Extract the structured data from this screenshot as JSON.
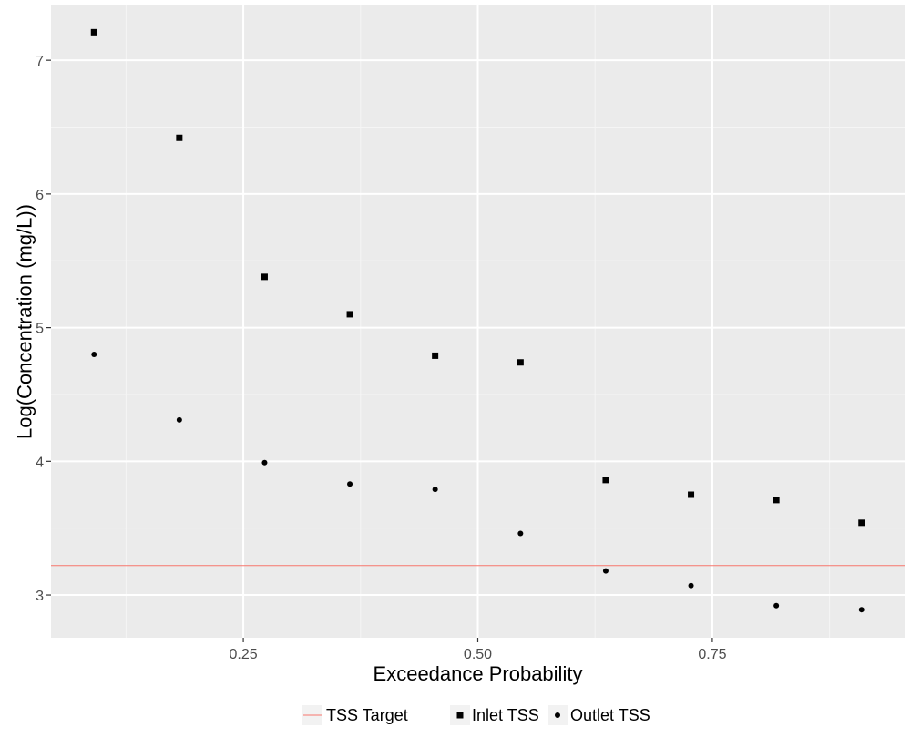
{
  "chart_data": {
    "type": "scatter",
    "title": "",
    "xlabel": "Exceedance Probability",
    "ylabel": "Log(Concentration (mg/L))",
    "xlim": [
      0.045,
      0.955
    ],
    "ylim": [
      2.68,
      7.41
    ],
    "x_ticks": [
      0.25,
      0.5,
      0.75
    ],
    "x_tick_labels": [
      "0.25",
      "0.50",
      "0.75"
    ],
    "x_minor_ticks": [
      0.125,
      0.375,
      0.625,
      0.875
    ],
    "y_ticks": [
      3,
      4,
      5,
      6,
      7
    ],
    "y_tick_labels": [
      "3",
      "4",
      "5",
      "6",
      "7"
    ],
    "y_minor_ticks": [
      3.5,
      4.5,
      5.5,
      6.5
    ],
    "grid": true,
    "legend_position": "bottom",
    "series": [
      {
        "name": "Inlet TSS",
        "marker": "square",
        "color": "#000000",
        "x": [
          0.0909,
          0.1818,
          0.2727,
          0.3636,
          0.4545,
          0.5455,
          0.6364,
          0.7273,
          0.8182,
          0.9091
        ],
        "y": [
          7.21,
          6.42,
          5.38,
          5.1,
          4.79,
          4.74,
          3.86,
          3.75,
          3.71,
          3.54
        ]
      },
      {
        "name": "Outlet TSS",
        "marker": "circle",
        "color": "#000000",
        "x": [
          0.0909,
          0.1818,
          0.2727,
          0.3636,
          0.4545,
          0.5455,
          0.6364,
          0.7273,
          0.8182,
          0.9091
        ],
        "y": [
          4.8,
          4.31,
          3.99,
          3.83,
          3.79,
          3.46,
          3.18,
          3.07,
          2.92,
          2.89
        ]
      }
    ],
    "reference_lines": [
      {
        "name": "TSS Target",
        "orientation": "horizontal",
        "y": 3.22,
        "color": "#F8766D"
      }
    ],
    "legend": [
      {
        "label": "TSS Target",
        "key": "line",
        "color": "#F8766D"
      },
      {
        "label": "Inlet TSS",
        "key": "square",
        "color": "#000000"
      },
      {
        "label": "Outlet TSS",
        "key": "circle",
        "color": "#000000"
      }
    ],
    "colors": {
      "panel_background": "#EBEBEB",
      "grid_major": "#FFFFFF",
      "grid_minor": "#F5F5F5",
      "tick_label": "#4D4D4D"
    }
  }
}
